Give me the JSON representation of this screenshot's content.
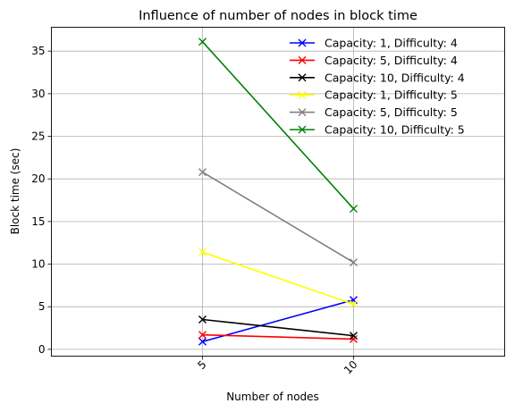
{
  "chart_data": {
    "type": "line",
    "title": "Influence of number of nodes in block time",
    "xlabel": "Number of nodes",
    "ylabel": "Block time (sec)",
    "x": [
      5,
      10
    ],
    "xtick_labels": [
      "5",
      "10"
    ],
    "xlim": [
      0,
      15
    ],
    "ylim": [
      -0.8,
      37.8
    ],
    "yticks": [
      0,
      5,
      10,
      15,
      20,
      25,
      30,
      35
    ],
    "ytick_labels": [
      "0",
      "5",
      "10",
      "15",
      "20",
      "25",
      "30",
      "35"
    ],
    "grid": true,
    "legend_position": "top-right",
    "marker": "x",
    "series": [
      {
        "name": "Capacity: 1, Difficulty: 4",
        "color": "#0000ff",
        "values": [
          0.9,
          5.8
        ]
      },
      {
        "name": "Capacity: 5, Difficulty: 4",
        "color": "#ff0000",
        "values": [
          1.7,
          1.2
        ]
      },
      {
        "name": "Capacity: 10, Difficulty: 4",
        "color": "#000000",
        "values": [
          3.5,
          1.6
        ]
      },
      {
        "name": "Capacity: 1, Difficulty: 5",
        "color": "#ffff00",
        "values": [
          11.4,
          5.3
        ]
      },
      {
        "name": "Capacity: 5, Difficulty: 5",
        "color": "#808080",
        "values": [
          20.8,
          10.2
        ]
      },
      {
        "name": "Capacity: 10, Difficulty: 5",
        "color": "#008000",
        "values": [
          36.1,
          16.5
        ]
      }
    ]
  }
}
